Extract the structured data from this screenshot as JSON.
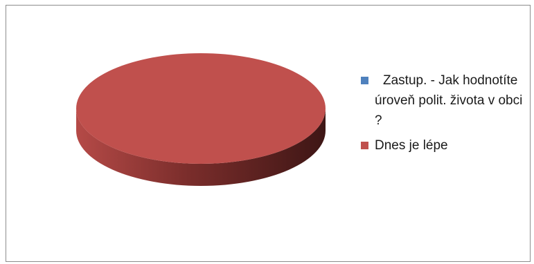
{
  "chart_data": {
    "type": "pie",
    "title": "",
    "series": [
      {
        "values": [
          0,
          1
        ]
      }
    ],
    "categories": [
      "Zastup. - Jak hodnotíte úroveň polit. života v obci ?",
      "Dnes je lépe"
    ],
    "colors": [
      "#4f81bd",
      "#c0504d"
    ],
    "legend": "right",
    "style": "3d"
  }
}
